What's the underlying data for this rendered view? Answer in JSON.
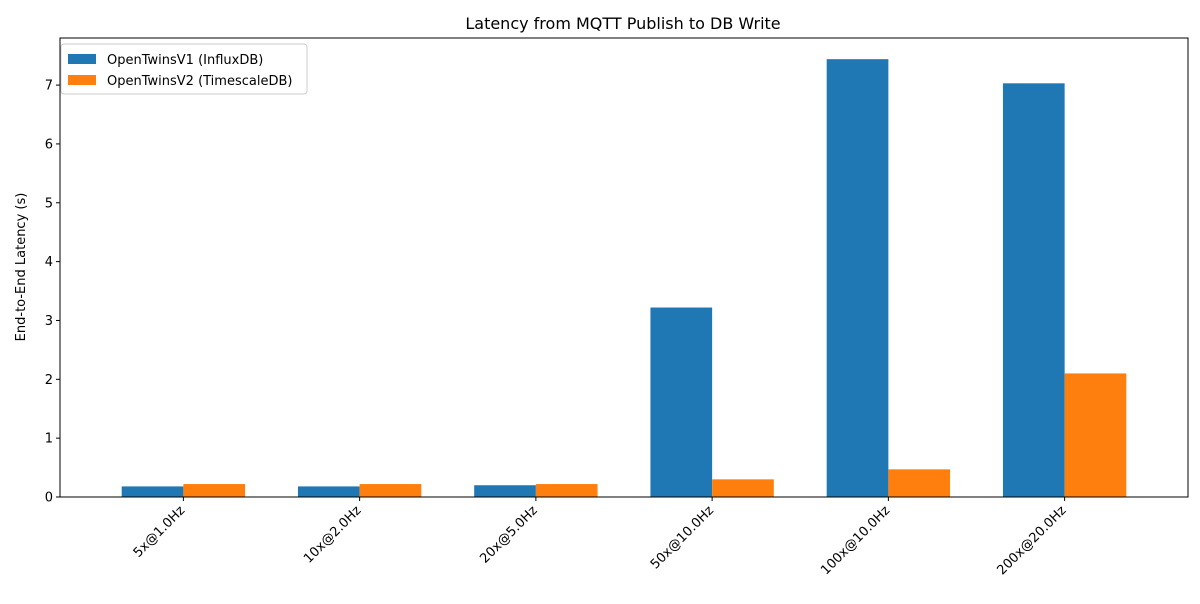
{
  "chart_data": {
    "type": "bar",
    "title": "Latency from MQTT Publish to DB Write",
    "xlabel": "",
    "ylabel": "End-to-End Latency (s)",
    "categories": [
      "5x@1.0Hz",
      "10x@2.0Hz",
      "20x@5.0Hz",
      "50x@10.0Hz",
      "100x@10.0Hz",
      "200x@20.0Hz"
    ],
    "series": [
      {
        "name": "OpenTwinsV1 (InfluxDB)",
        "color": "#1f77b4",
        "values": [
          0.18,
          0.18,
          0.2,
          3.22,
          7.44,
          7.03
        ]
      },
      {
        "name": "OpenTwinsV2 (TimescaleDB)",
        "color": "#ff7f0e",
        "values": [
          0.22,
          0.22,
          0.22,
          0.3,
          0.47,
          2.1
        ]
      }
    ],
    "ylim": [
      0,
      7.8
    ],
    "yticks": [
      0,
      1,
      2,
      3,
      4,
      5,
      6,
      7
    ],
    "grid": false,
    "legend_position": "top-left",
    "xtick_rotation": 45
  }
}
